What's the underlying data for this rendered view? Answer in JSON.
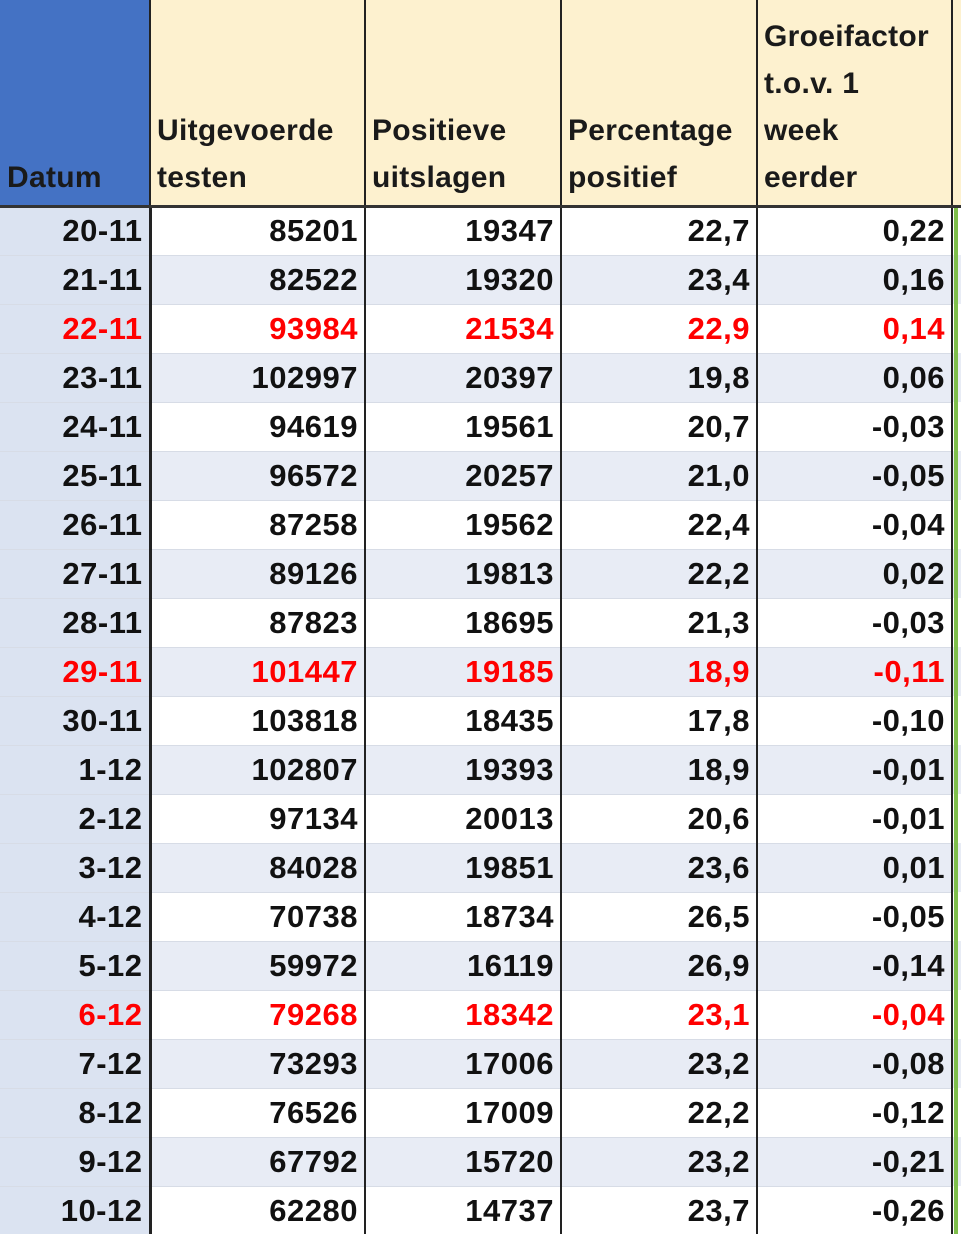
{
  "headers": {
    "datum": "Datum",
    "tests": [
      "Uitgevoerde",
      "testen"
    ],
    "positive": [
      "Positieve",
      "uitslagen"
    ],
    "percentage": [
      "Percentage",
      "positief"
    ],
    "groei": [
      "Groeifactor",
      "t.o.v. 1",
      "week",
      "eerder"
    ]
  },
  "colors": {
    "header_datum": "#4472c4",
    "header_bg": "#fdf1cf",
    "row_band": "#e8ecf5",
    "highlight_text": "#ff0000",
    "edge_bar": "#7fbf4b"
  },
  "rows": [
    {
      "datum": "20-11",
      "tests": "85201",
      "positive": "19347",
      "percentage": "22,7",
      "groei": "0,22",
      "highlight": false
    },
    {
      "datum": "21-11",
      "tests": "82522",
      "positive": "19320",
      "percentage": "23,4",
      "groei": "0,16",
      "highlight": false
    },
    {
      "datum": "22-11",
      "tests": "93984",
      "positive": "21534",
      "percentage": "22,9",
      "groei": "0,14",
      "highlight": true
    },
    {
      "datum": "23-11",
      "tests": "102997",
      "positive": "20397",
      "percentage": "19,8",
      "groei": "0,06",
      "highlight": false
    },
    {
      "datum": "24-11",
      "tests": "94619",
      "positive": "19561",
      "percentage": "20,7",
      "groei": "-0,03",
      "highlight": false
    },
    {
      "datum": "25-11",
      "tests": "96572",
      "positive": "20257",
      "percentage": "21,0",
      "groei": "-0,05",
      "highlight": false
    },
    {
      "datum": "26-11",
      "tests": "87258",
      "positive": "19562",
      "percentage": "22,4",
      "groei": "-0,04",
      "highlight": false
    },
    {
      "datum": "27-11",
      "tests": "89126",
      "positive": "19813",
      "percentage": "22,2",
      "groei": "0,02",
      "highlight": false
    },
    {
      "datum": "28-11",
      "tests": "87823",
      "positive": "18695",
      "percentage": "21,3",
      "groei": "-0,03",
      "highlight": false
    },
    {
      "datum": "29-11",
      "tests": "101447",
      "positive": "19185",
      "percentage": "18,9",
      "groei": "-0,11",
      "highlight": true
    },
    {
      "datum": "30-11",
      "tests": "103818",
      "positive": "18435",
      "percentage": "17,8",
      "groei": "-0,10",
      "highlight": false
    },
    {
      "datum": "1-12",
      "tests": "102807",
      "positive": "19393",
      "percentage": "18,9",
      "groei": "-0,01",
      "highlight": false
    },
    {
      "datum": "2-12",
      "tests": "97134",
      "positive": "20013",
      "percentage": "20,6",
      "groei": "-0,01",
      "highlight": false
    },
    {
      "datum": "3-12",
      "tests": "84028",
      "positive": "19851",
      "percentage": "23,6",
      "groei": "0,01",
      "highlight": false
    },
    {
      "datum": "4-12",
      "tests": "70738",
      "positive": "18734",
      "percentage": "26,5",
      "groei": "-0,05",
      "highlight": false
    },
    {
      "datum": "5-12",
      "tests": "59972",
      "positive": "16119",
      "percentage": "26,9",
      "groei": "-0,14",
      "highlight": false
    },
    {
      "datum": "6-12",
      "tests": "79268",
      "positive": "18342",
      "percentage": "23,1",
      "groei": "-0,04",
      "highlight": true
    },
    {
      "datum": "7-12",
      "tests": "73293",
      "positive": "17006",
      "percentage": "23,2",
      "groei": "-0,08",
      "highlight": false
    },
    {
      "datum": "8-12",
      "tests": "76526",
      "positive": "17009",
      "percentage": "22,2",
      "groei": "-0,12",
      "highlight": false
    },
    {
      "datum": "9-12",
      "tests": "67792",
      "positive": "15720",
      "percentage": "23,2",
      "groei": "-0,21",
      "highlight": false
    },
    {
      "datum": "10-12",
      "tests": "62280",
      "positive": "14737",
      "percentage": "23,7",
      "groei": "-0,26",
      "highlight": false
    }
  ]
}
